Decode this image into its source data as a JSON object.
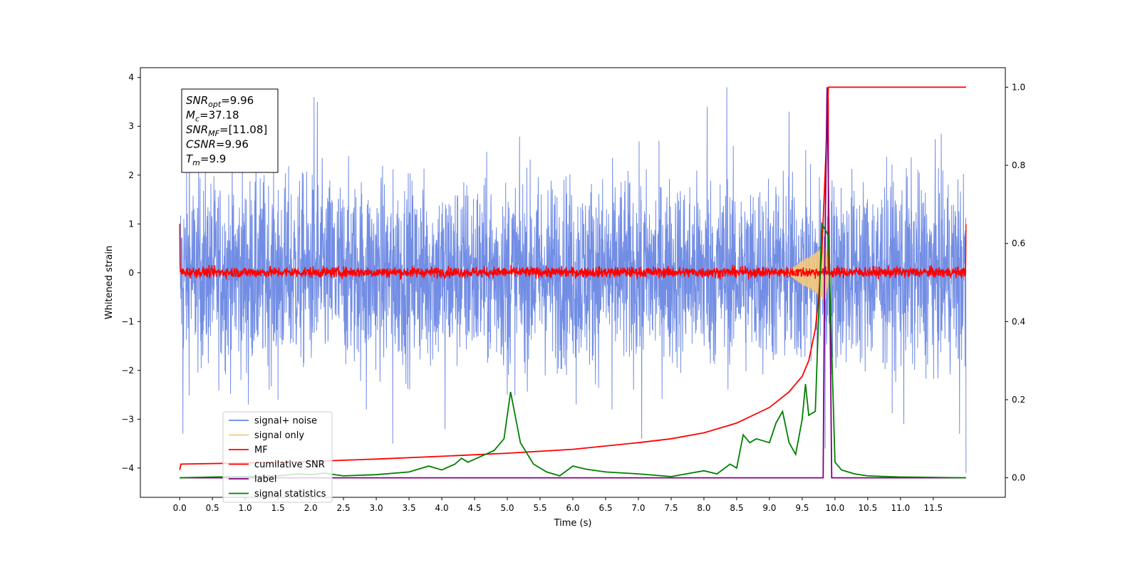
{
  "chart_data": {
    "type": "line",
    "xlabel": "Time (s)",
    "ylabel": "Whitened strain",
    "xlim": [
      -0.6,
      12.6
    ],
    "ylim": [
      -4.6,
      4.2
    ],
    "y2lim": [
      -0.05,
      1.05
    ],
    "x_ticks": [
      "0.0",
      "0.5",
      "1.0",
      "1.5",
      "2.0",
      "2.5",
      "3.0",
      "3.5",
      "4.0",
      "4.5",
      "5.0",
      "5.5",
      "6.0",
      "6.5",
      "7.0",
      "7.5",
      "8.0",
      "8.5",
      "9.0",
      "9.5",
      "10.0",
      "10.5",
      "11.0",
      "11.5"
    ],
    "y_ticks": [
      "4",
      "3",
      "2",
      "1",
      "0",
      "−1",
      "−2",
      "−3",
      "−4"
    ],
    "y2_ticks": [
      "1.0",
      "0.8",
      "0.6",
      "0.4",
      "0.2",
      "0.0"
    ],
    "grid": false,
    "legend_placement": "lower-left",
    "annotation": {
      "lines": [
        {
          "sym": "SNR",
          "sub": "opt",
          "value": "=9.96"
        },
        {
          "sym": "M",
          "sub": "c",
          "value": "=37.18"
        },
        {
          "sym": "SNR",
          "sub": "MF",
          "value": "=[11.08]"
        },
        {
          "sym": "CSNR",
          "sub": "",
          "value": "=9.96"
        },
        {
          "sym": "T",
          "sub": "m",
          "value": "=9.9"
        }
      ]
    },
    "series": [
      {
        "name": "signal+ noise",
        "color": "#6a87e3",
        "axis": "left",
        "style": "noise",
        "x_range": [
          0,
          12
        ],
        "envelope": [
          -2.4,
          2.6
        ],
        "extremes_x": [
          0.05,
          0.15,
          1.05,
          1.5,
          2.05,
          2.1,
          2.85,
          3.25,
          4.05,
          5.0,
          6.05,
          6.6,
          7.05,
          8.05,
          8.35,
          9.3,
          9.85,
          11.05,
          11.9,
          12.0
        ],
        "extremes_y": [
          -3.3,
          3.3,
          -2.7,
          -2.6,
          3.6,
          3.5,
          -2.8,
          -3.5,
          -3.2,
          -2.5,
          -2.7,
          -2.8,
          -3.4,
          3.4,
          3.8,
          3.3,
          -3.6,
          -3.1,
          -3.3,
          -4.1
        ]
      },
      {
        "name": "signal only",
        "color": "#f5c97a",
        "axis": "left",
        "style": "chirp",
        "x": [
          9.3,
          9.5,
          9.7,
          9.85,
          9.9
        ],
        "amplitude": [
          0.05,
          0.25,
          0.4,
          0.6,
          0.2
        ]
      },
      {
        "name": "MF",
        "color": "#ff0000",
        "axis": "left",
        "style": "noise",
        "x_range": [
          0,
          12
        ],
        "envelope": [
          -0.12,
          0.15
        ],
        "edge_values": [
          1.0,
          1.0
        ],
        "peak_x": 9.9,
        "peak_y": 3.6
      },
      {
        "name": "cumilative SNR",
        "color": "#ff0000",
        "axis": "right",
        "x": [
          0,
          0.02,
          1,
          2,
          3,
          4,
          5,
          6,
          7,
          7.5,
          8,
          8.5,
          9,
          9.3,
          9.5,
          9.6,
          9.7,
          9.75,
          9.8,
          9.85,
          9.9,
          10,
          11,
          12
        ],
        "values": [
          0.02,
          0.035,
          0.038,
          0.042,
          0.048,
          0.055,
          0.063,
          0.073,
          0.09,
          0.1,
          0.115,
          0.14,
          0.18,
          0.22,
          0.26,
          0.3,
          0.38,
          0.46,
          0.58,
          0.78,
          1.0,
          1.0,
          1.0,
          1.0
        ]
      },
      {
        "name": "label",
        "color": "#800080",
        "axis": "right",
        "x": [
          0,
          9.82,
          9.84,
          9.88,
          9.92,
          9.95,
          12
        ],
        "values": [
          0.0,
          0.0,
          0.5,
          1.0,
          0.5,
          0.0,
          0.0
        ]
      },
      {
        "name": "signal statistics",
        "color": "#008000",
        "axis": "right",
        "x": [
          0,
          0.5,
          1,
          1.5,
          1.8,
          2,
          2.2,
          2.5,
          3,
          3.5,
          3.8,
          4,
          4.2,
          4.3,
          4.4,
          4.6,
          4.8,
          4.95,
          5.05,
          5.2,
          5.4,
          5.6,
          5.8,
          6,
          6.2,
          6.5,
          7,
          7.5,
          8,
          8.2,
          8.4,
          8.5,
          8.6,
          8.7,
          8.8,
          9,
          9.1,
          9.2,
          9.3,
          9.4,
          9.5,
          9.55,
          9.6,
          9.7,
          9.8,
          9.9,
          10,
          10.1,
          10.2,
          10.3,
          10.5,
          11,
          12
        ],
        "values": [
          0.0,
          0.002,
          0.003,
          0.005,
          0.01,
          0.008,
          0.012,
          0.005,
          0.008,
          0.015,
          0.03,
          0.02,
          0.035,
          0.05,
          0.04,
          0.055,
          0.07,
          0.1,
          0.22,
          0.09,
          0.035,
          0.015,
          0.005,
          0.03,
          0.022,
          0.015,
          0.01,
          0.003,
          0.018,
          0.01,
          0.035,
          0.025,
          0.11,
          0.09,
          0.1,
          0.09,
          0.14,
          0.17,
          0.09,
          0.06,
          0.15,
          0.24,
          0.16,
          0.17,
          0.65,
          0.62,
          0.04,
          0.02,
          0.015,
          0.01,
          0.005,
          0.002,
          0.0
        ]
      }
    ]
  }
}
